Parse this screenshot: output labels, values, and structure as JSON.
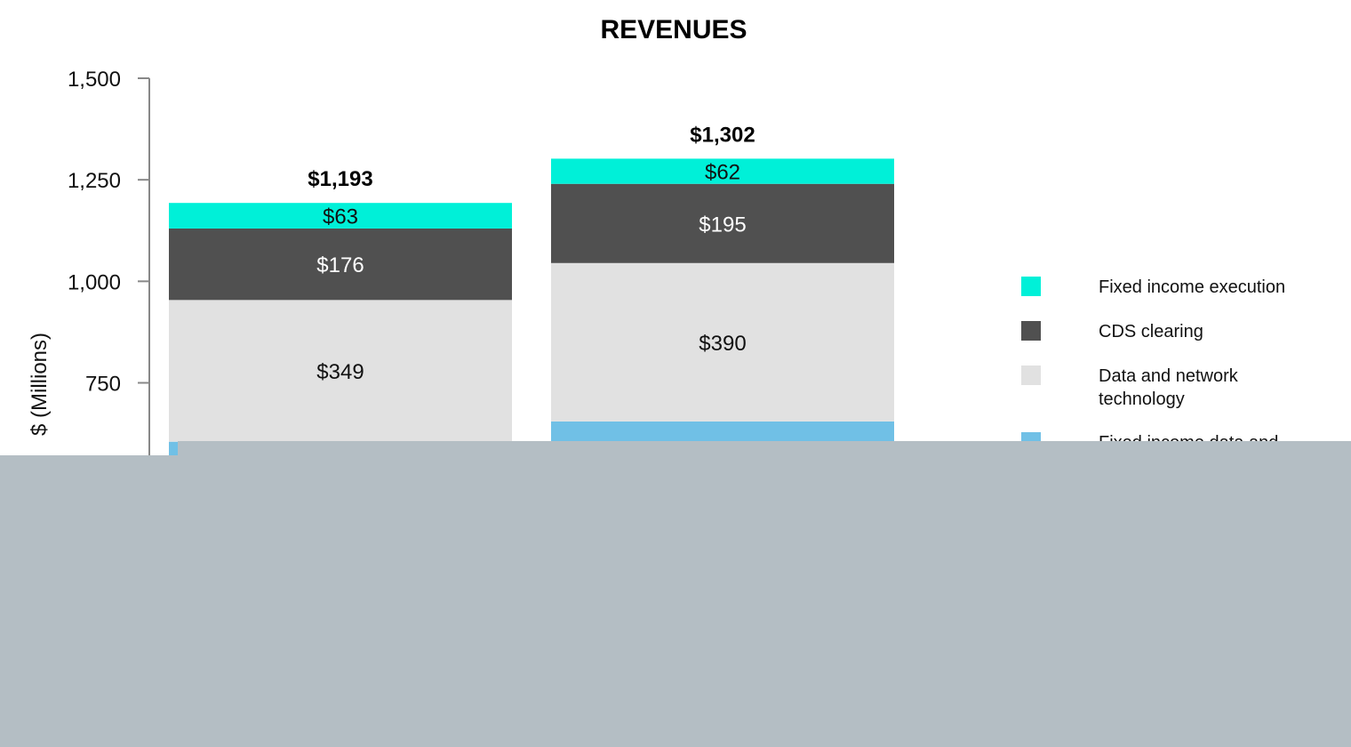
{
  "chart_data": {
    "type": "bar",
    "stacked": true,
    "title": "REVENUES",
    "xlabel": "",
    "ylabel": "$ (Millions)",
    "ylim": [
      0,
      1500
    ],
    "yticks": [
      "1,500",
      "1,250",
      "1,000",
      "750"
    ],
    "ytick_values": [
      1500,
      1250,
      1000,
      750
    ],
    "grid": false,
    "legend_position": "right",
    "categories": [
      "",
      ""
    ],
    "totals": [
      1193,
      1302
    ],
    "total_labels": [
      "$1,193",
      "$1,302"
    ],
    "series": [
      {
        "name": "Fixed income data and",
        "color": "#70c0e6",
        "values": [
          605,
          655
        ],
        "labels": [
          "",
          ""
        ]
      },
      {
        "name": "Data and network technology",
        "color": "#e1e1e1",
        "values": [
          349,
          390
        ],
        "labels": [
          "$349",
          "$390"
        ]
      },
      {
        "name": "CDS clearing",
        "color": "#505050",
        "values": [
          176,
          195
        ],
        "labels": [
          "$176",
          "$195"
        ]
      },
      {
        "name": "Fixed income execution",
        "color": "#00f0d8",
        "values": [
          63,
          62
        ],
        "labels": [
          "$63",
          "$62"
        ]
      }
    ],
    "legend": [
      {
        "label_lines": [
          "Fixed income execution"
        ],
        "color": "#00f0d8"
      },
      {
        "label_lines": [
          "CDS clearing"
        ],
        "color": "#505050"
      },
      {
        "label_lines": [
          "Data and network",
          "technology"
        ],
        "color": "#e1e1e1"
      },
      {
        "label_lines": [
          "Fixed income data and"
        ],
        "color": "#70c0e6"
      }
    ],
    "label_colors": {
      "dark": "#111111",
      "light": "#ffffff"
    }
  }
}
